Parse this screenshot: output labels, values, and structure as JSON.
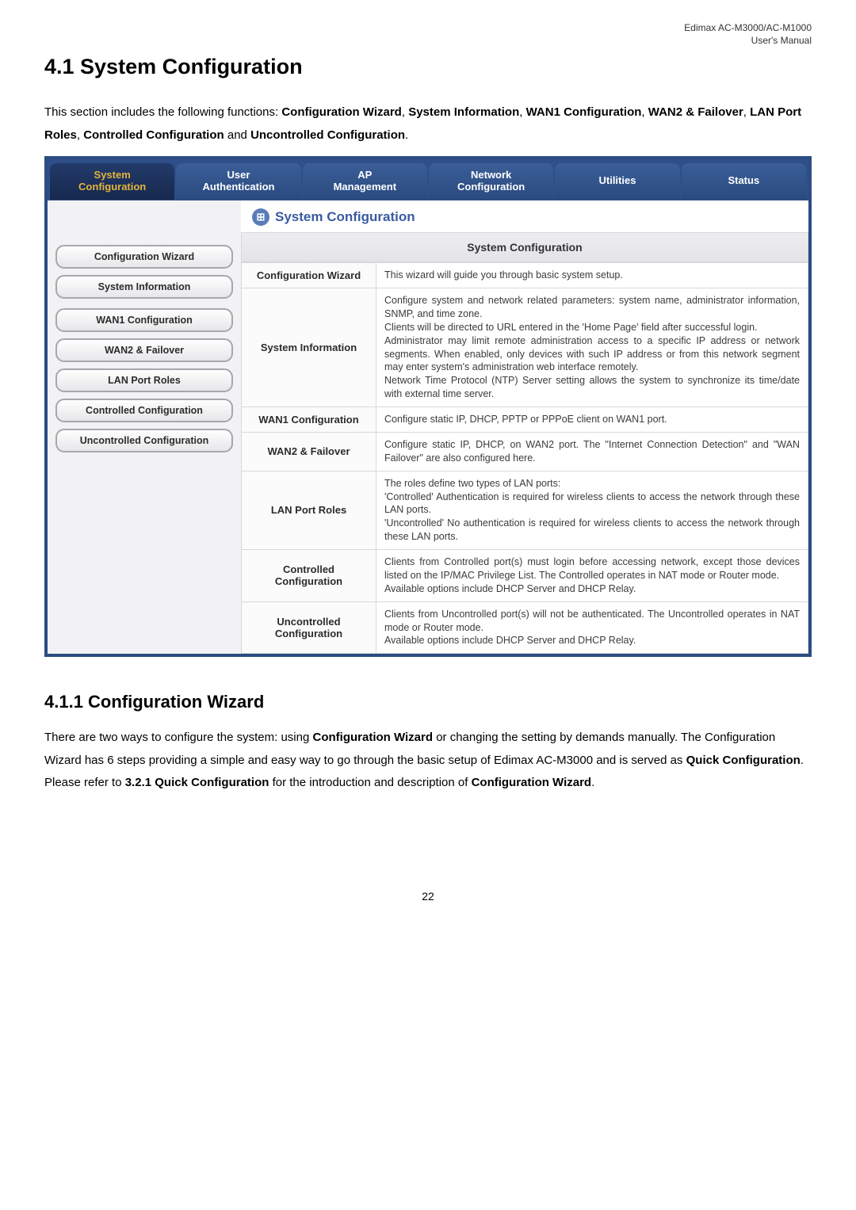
{
  "header": {
    "line1": "Edimax AC-M3000/AC-M1000",
    "line2": "User's Manual"
  },
  "title": "4.1 System Configuration",
  "intro_plain_prefix": "This section includes the following functions: ",
  "intro_bolds": {
    "b1": "Configuration Wizard",
    "b2": "System Information",
    "b3": "WAN1 Configuration",
    "b4": "WAN2 & Failover",
    "b5": "LAN Port Roles",
    "b6": "Controlled Configuration",
    "b7": "Uncontrolled Configuration"
  },
  "intro_joins": {
    "comma": ", ",
    "and": " and ",
    "period": "."
  },
  "tabs": {
    "t1a": "System",
    "t1b": "Configuration",
    "t2a": "User",
    "t2b": "Authentication",
    "t3a": "AP",
    "t3b": "Management",
    "t4a": "Network",
    "t4b": "Configuration",
    "t5": "Utilities",
    "t6": "Status"
  },
  "section_head": "System Configuration",
  "icon_glyph": "⊞",
  "left_nav": {
    "n1": "Configuration Wizard",
    "n2": "System Information",
    "n3": "WAN1 Configuration",
    "n4": "WAN2 & Failover",
    "n5": "LAN Port Roles",
    "n6": "Controlled Configuration",
    "n7": "Uncontrolled Configuration"
  },
  "table_title": "System Configuration",
  "rows": {
    "r1": {
      "label": "Configuration Wizard",
      "body": "This wizard will guide you through basic system setup."
    },
    "r2": {
      "label": "System Information",
      "body": "Configure system and network related parameters: system name, administrator information, SNMP, and time zone.\nClients will be directed to URL entered in the 'Home Page' field after successful login.\nAdministrator may limit remote administration access to a specific IP address or network segments. When enabled, only devices with such IP address or from this network segment may enter system's administration web interface remotely.\nNetwork Time Protocol (NTP) Server setting allows the system to synchronize its time/date with external time server."
    },
    "r3": {
      "label": "WAN1 Configuration",
      "body": "Configure static IP, DHCP, PPTP or PPPoE client on WAN1 port."
    },
    "r4": {
      "label": "WAN2 & Failover",
      "body": "Configure static IP, DHCP, on WAN2 port. The \"Internet Connection Detection\" and \"WAN Failover\" are also configured here."
    },
    "r5": {
      "label": "LAN Port Roles",
      "body": "The roles define two types of LAN ports:\n'Controlled' Authentication is required for wireless clients to access the network through these LAN ports.\n'Uncontrolled' No authentication is required for wireless clients to access the network through these LAN ports."
    },
    "r6": {
      "label": "Controlled Configuration",
      "body": "Clients from Controlled port(s) must login before accessing network, except those devices listed on the IP/MAC Privilege List. The Controlled operates in NAT mode or Router mode.\nAvailable options include DHCP Server and DHCP Relay."
    },
    "r7": {
      "label": "Uncontrolled Configuration",
      "body": "Clients from Uncontrolled port(s) will not be authenticated. The Uncontrolled operates in NAT mode or Router mode.\nAvailable options include DHCP Server and DHCP Relay."
    }
  },
  "subsection_title": "4.1.1 Configuration Wizard",
  "body2": {
    "p1a": "There are two ways to configure the system: using ",
    "p1b": "Configuration Wizard",
    "p1c": " or changing the setting by demands manually. The Configuration Wizard has 6 steps providing a simple and easy way to go through the basic setup of Edimax AC-M3000 and is served as ",
    "p1d": "Quick Configuration",
    "p1e": ". Please refer to ",
    "p1f": "3.2.1 Quick Configuration",
    "p1g": " for the introduction and description of ",
    "p1h": "Configuration Wizard",
    "p1i": "."
  },
  "page_number": "22",
  "colors": {
    "frame_border": "#2a4d82",
    "tab_bg": "#2e4f87",
    "active_text": "#e4b43d",
    "head_color": "#3a5ba0"
  }
}
